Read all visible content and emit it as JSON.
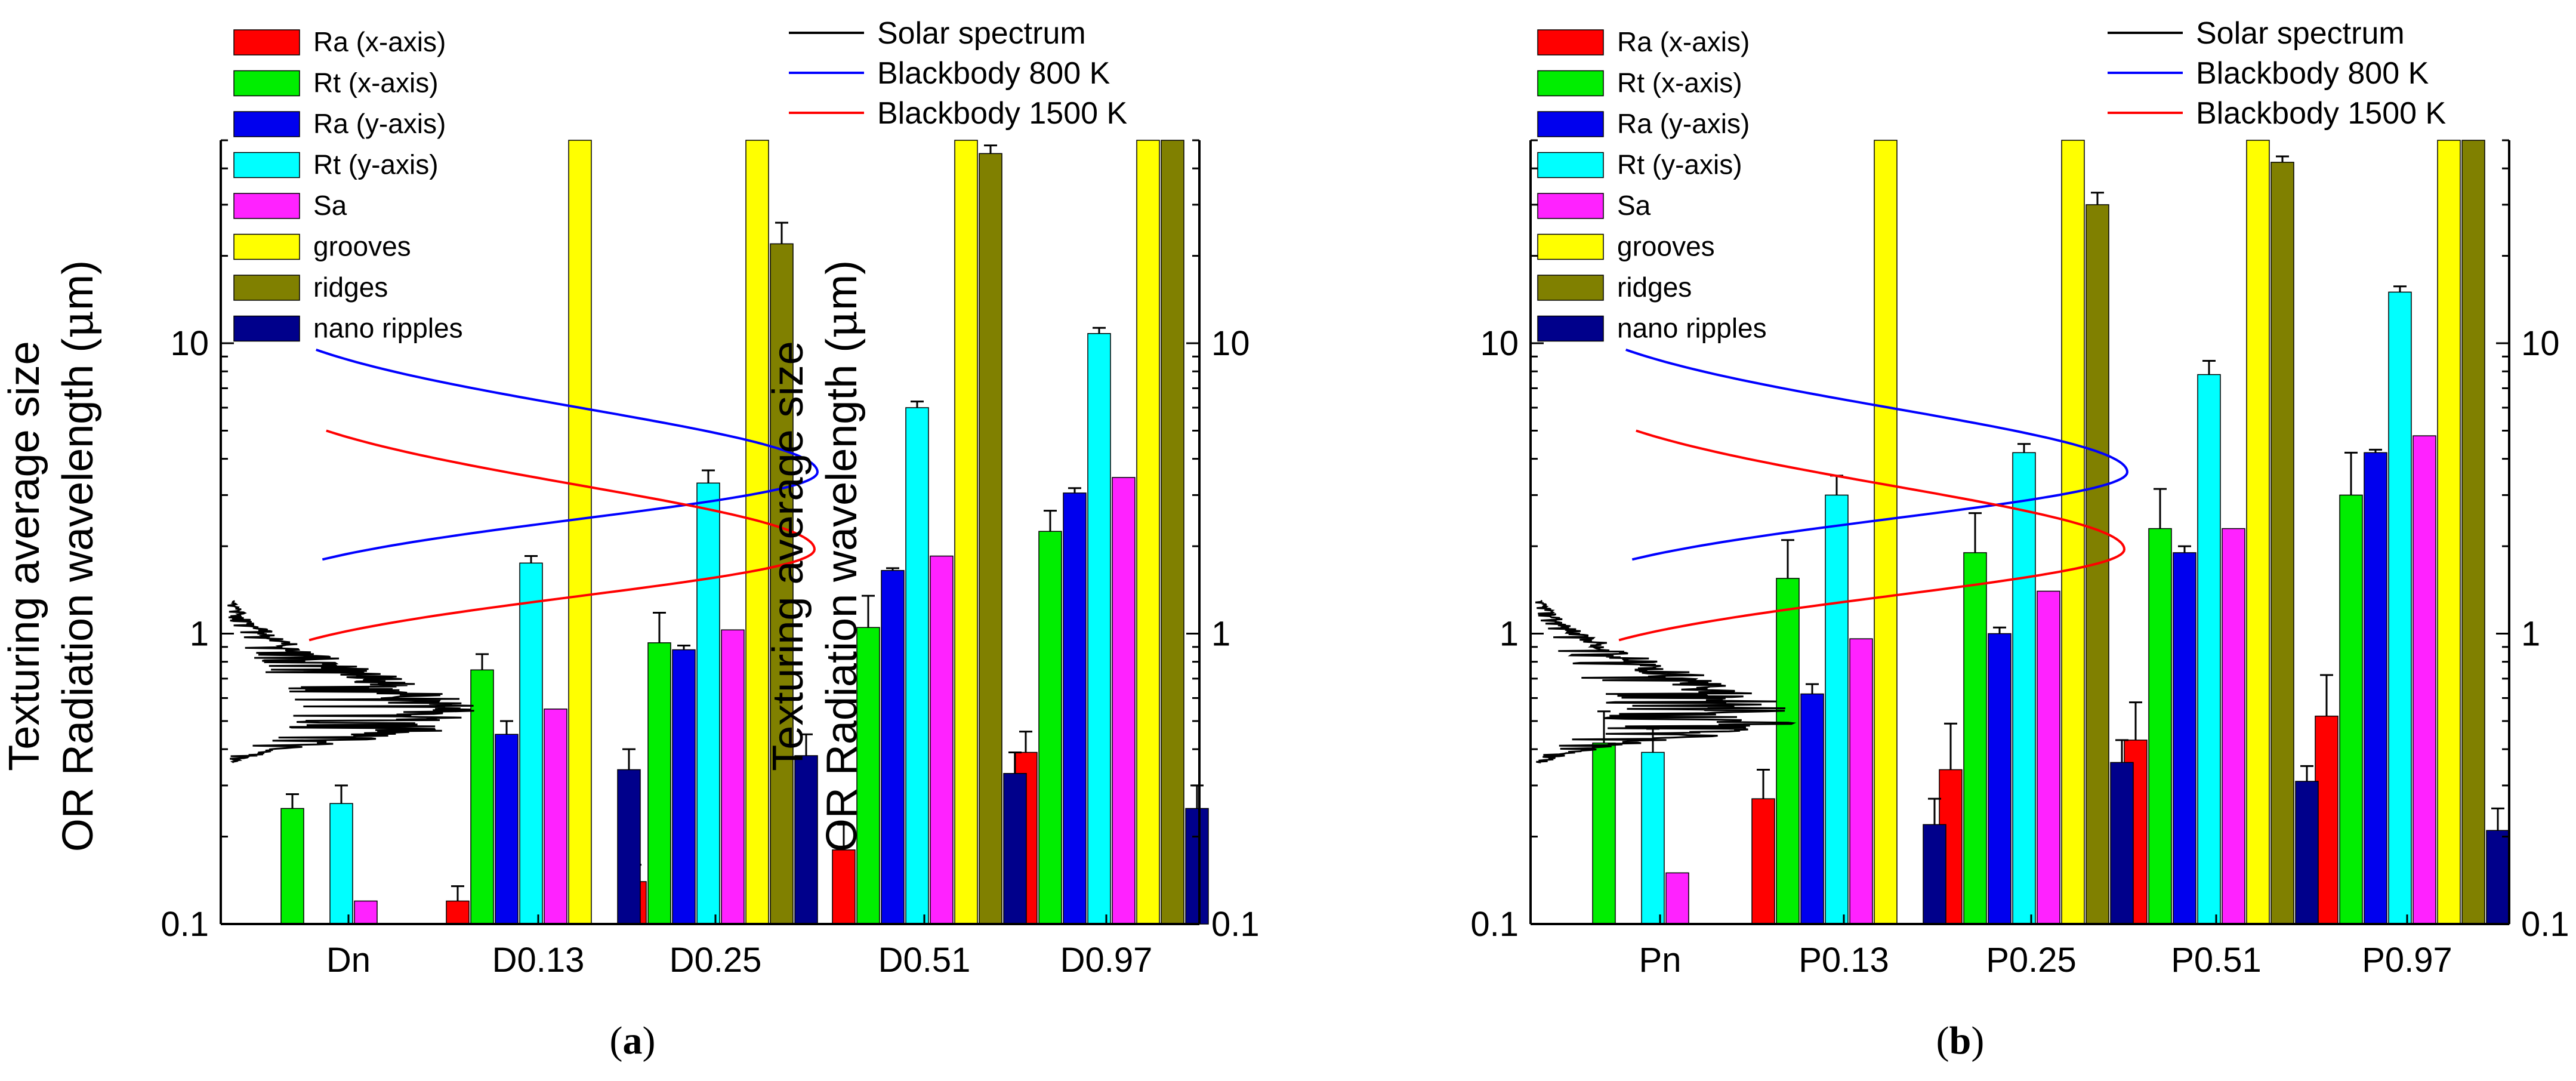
{
  "figure": {
    "colors": {
      "Ra (x-axis)": "#ff0000",
      "Rt (x-axis)": "#00ee00",
      "Ra (y-axis)": "#0000ee",
      "Rt (y-axis)": "#00ffff",
      "Sa": "#ff22ff",
      "grooves": "#ffff00",
      "ridges": "#808000",
      "nano ripples": "#00008b",
      "Solar spectrum": "#000000",
      "Blackbody 800 K": "#0000ff",
      "Blackbody 1500 K": "#ff0000"
    }
  },
  "chart_data": [
    {
      "type": "bar",
      "panel_label": "a",
      "ylabel_line1": "Texturing average size",
      "ylabel_line2": "OR Radiation wavelength (",
      "ylabel_mu": "μ",
      "ylabel_end": "m)",
      "yscale": "log",
      "ylim": [
        0.1,
        50
      ],
      "yticks": [
        0.1,
        1,
        10
      ],
      "ytick_labels": [
        "0.1",
        "1",
        "10"
      ],
      "categories": [
        "Dn",
        "D0.13",
        "D0.25",
        "D0.51",
        "D0.97"
      ],
      "bar_legend": [
        "Ra (x-axis)",
        "Rt (x-axis)",
        "Ra (y-axis)",
        "Rt (y-axis)",
        "Sa",
        "grooves",
        "ridges",
        "nano ripples"
      ],
      "line_legend": [
        "Solar spectrum",
        "Blackbody 800 K",
        "Blackbody 1500 K"
      ],
      "series": [
        {
          "name": "Ra (x-axis)",
          "values": [
            null,
            0.12,
            0.14,
            0.18,
            0.39
          ],
          "errors": [
            null,
            0.015,
            0.02,
            0.04,
            0.07
          ]
        },
        {
          "name": "Rt (x-axis)",
          "values": [
            0.25,
            0.75,
            0.93,
            1.05,
            2.25
          ],
          "errors": [
            0.03,
            0.1,
            0.25,
            0.3,
            0.4
          ]
        },
        {
          "name": "Ra (y-axis)",
          "values": [
            null,
            0.45,
            0.88,
            1.65,
            3.05
          ],
          "errors": [
            null,
            0.05,
            0.03,
            0.03,
            0.12
          ]
        },
        {
          "name": "Rt (y-axis)",
          "values": [
            0.26,
            1.75,
            3.3,
            6.0,
            10.8
          ],
          "errors": [
            0.04,
            0.1,
            0.35,
            0.3,
            0.5
          ]
        },
        {
          "name": "Sa",
          "values": [
            0.12,
            0.55,
            1.03,
            1.85,
            3.45
          ],
          "errors": [
            null,
            null,
            null,
            null,
            null
          ]
        },
        {
          "name": "grooves",
          "values": [
            null,
            50,
            50,
            50,
            50
          ],
          "errors": [
            null,
            null,
            null,
            null,
            null
          ]
        },
        {
          "name": "ridges",
          "values": [
            null,
            null,
            22,
            45,
            50
          ],
          "errors": [
            null,
            null,
            4,
            3,
            null
          ]
        },
        {
          "name": "nano ripples",
          "values": [
            null,
            0.34,
            0.38,
            0.33,
            0.25
          ],
          "errors": [
            null,
            0.06,
            0.07,
            0.06,
            0.05
          ]
        }
      ]
    },
    {
      "type": "bar",
      "panel_label": "b",
      "ylabel_line1": "Texturing average size",
      "ylabel_line2": "OR Radiation wavelength (",
      "ylabel_mu": "μ",
      "ylabel_end": "m)",
      "yscale": "log",
      "ylim": [
        0.1,
        50
      ],
      "yticks": [
        0.1,
        1,
        10
      ],
      "ytick_labels": [
        "0.1",
        "1",
        "10"
      ],
      "categories": [
        "Pn",
        "P0.13",
        "P0.25",
        "P0.51",
        "P0.97"
      ],
      "bar_legend": [
        "Ra (x-axis)",
        "Rt (x-axis)",
        "Ra (y-axis)",
        "Rt (y-axis)",
        "Sa",
        "grooves",
        "ridges",
        "nano ripples"
      ],
      "line_legend": [
        "Solar spectrum",
        "Blackbody 800 K",
        "Blackbody 1500 K"
      ],
      "series": [
        {
          "name": "Ra (x-axis)",
          "values": [
            null,
            0.27,
            0.34,
            0.43,
            0.52
          ],
          "errors": [
            null,
            0.07,
            0.15,
            0.15,
            0.2
          ]
        },
        {
          "name": "Rt (x-axis)",
          "values": [
            0.42,
            1.55,
            1.9,
            2.3,
            3.0
          ],
          "errors": [
            0.12,
            0.55,
            0.7,
            0.85,
            1.2
          ]
        },
        {
          "name": "Ra (y-axis)",
          "values": [
            null,
            0.62,
            1.0,
            1.9,
            4.2
          ],
          "errors": [
            null,
            0.05,
            0.05,
            0.1,
            0.1
          ]
        },
        {
          "name": "Rt (y-axis)",
          "values": [
            0.39,
            3.0,
            4.2,
            7.8,
            15.0
          ],
          "errors": [
            0.08,
            0.5,
            0.3,
            0.9,
            0.7
          ]
        },
        {
          "name": "Sa",
          "values": [
            0.15,
            0.96,
            1.4,
            2.3,
            4.8
          ],
          "errors": [
            null,
            null,
            null,
            null,
            null
          ]
        },
        {
          "name": "grooves",
          "values": [
            null,
            50,
            50,
            50,
            50
          ],
          "errors": [
            null,
            null,
            null,
            null,
            null
          ]
        },
        {
          "name": "ridges",
          "values": [
            null,
            null,
            30,
            42,
            50
          ],
          "errors": [
            null,
            null,
            3,
            2,
            null
          ]
        },
        {
          "name": "nano ripples",
          "values": [
            null,
            0.22,
            0.36,
            0.31,
            0.21
          ],
          "errors": [
            null,
            0.05,
            0.07,
            0.04,
            0.04
          ]
        }
      ]
    }
  ]
}
